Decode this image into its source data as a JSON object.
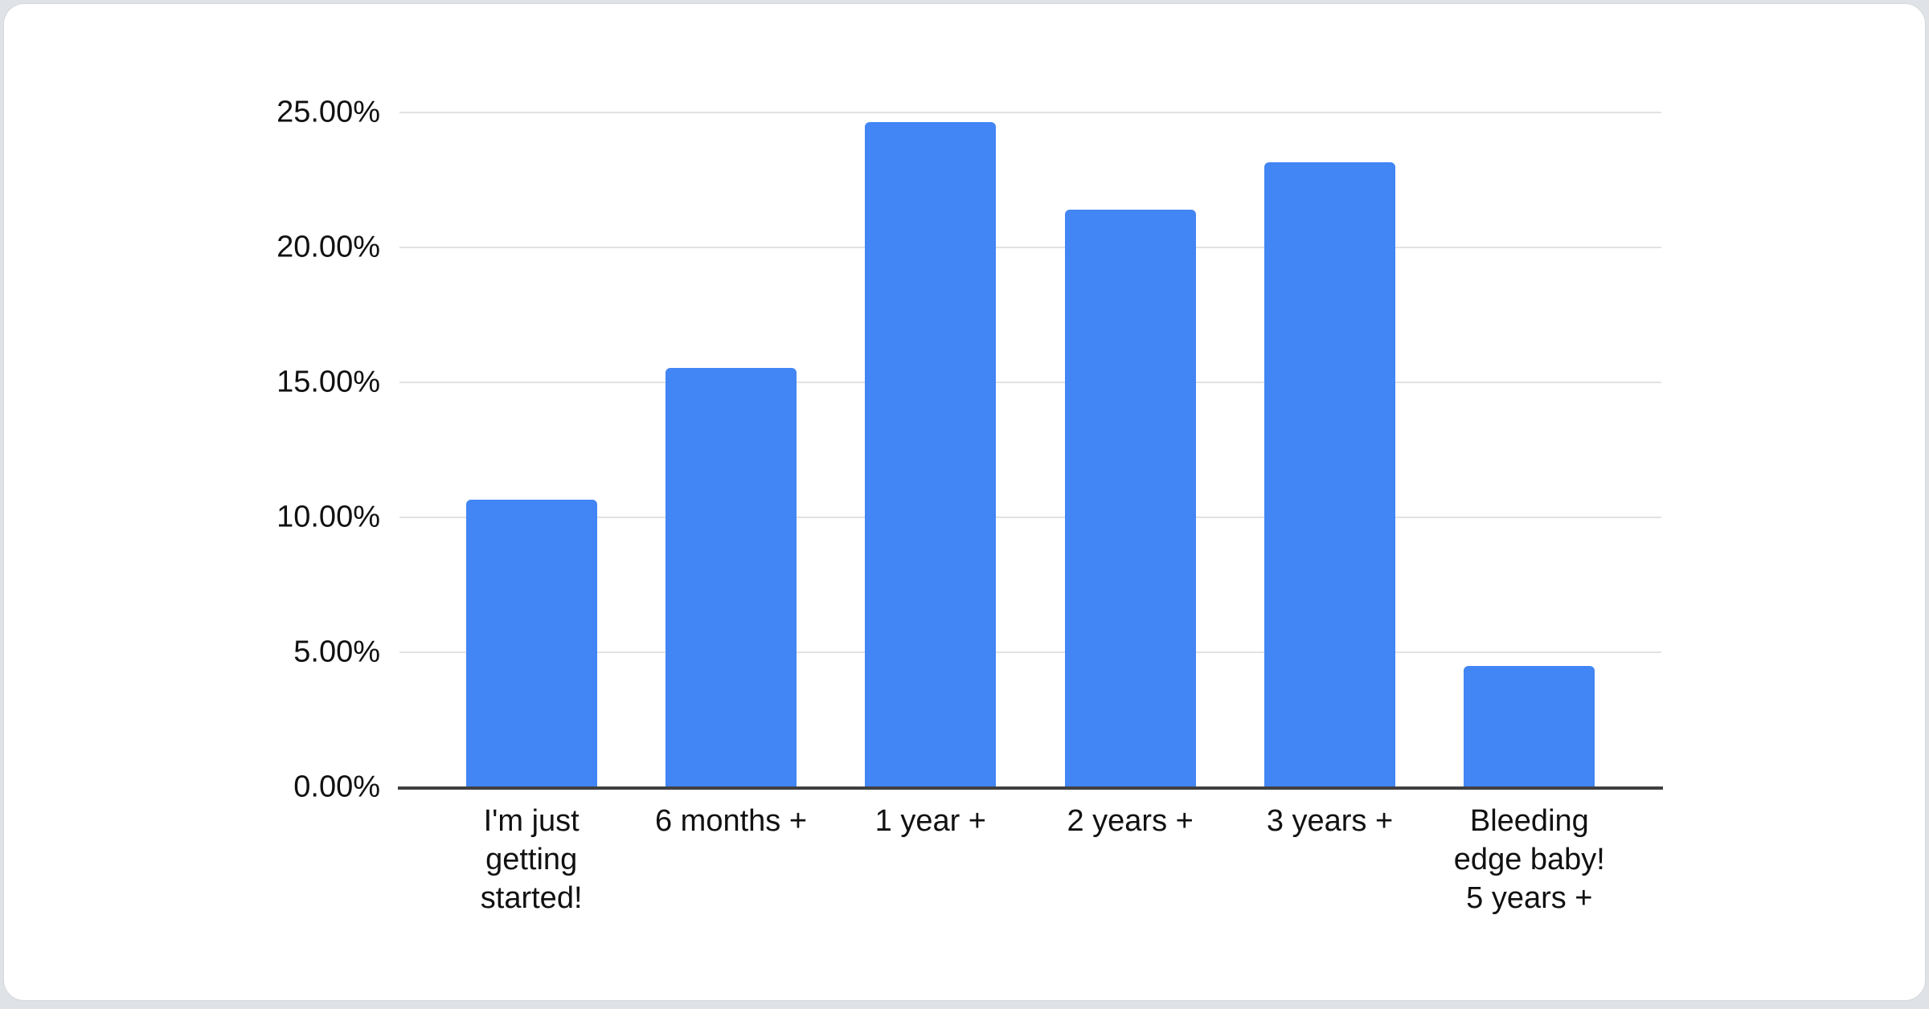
{
  "chart_data": {
    "type": "bar",
    "title": "",
    "xlabel": "",
    "ylabel": "",
    "categories": [
      "I'm just\ngetting\nstarted!",
      "6 months +",
      "1 year +",
      "2 years +",
      "3 years +",
      "Bleeding\nedge baby!\n5 years +"
    ],
    "values": [
      10.65,
      15.55,
      24.65,
      21.4,
      23.15,
      4.5
    ],
    "value_unit": "%",
    "ylim": [
      0,
      25
    ],
    "yticks": [
      0,
      5,
      10,
      15,
      20,
      25
    ],
    "ytick_labels": [
      "0.00%",
      "5.00%",
      "10.00%",
      "15.00%",
      "20.00%",
      "25.00%"
    ],
    "grid": true,
    "legend": false,
    "colors": {
      "bar": "#4285f4",
      "gridline": "#e2e2e2",
      "axis_line": "#404040",
      "label_text": "#111111",
      "card_background": "#ffffff",
      "page_background": "#dfe2e6"
    }
  }
}
